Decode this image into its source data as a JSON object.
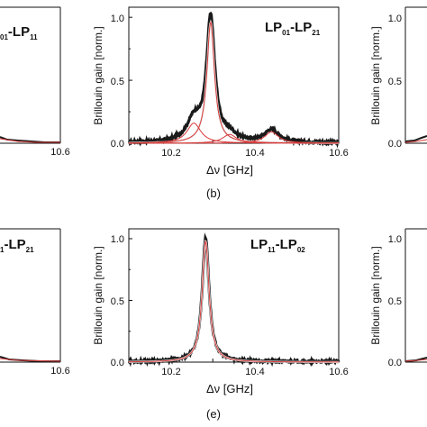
{
  "chart_data": [
    {
      "type": "line",
      "panel": "a",
      "title_main": [
        "01",
        "-LP",
        "11"
      ],
      "ylabel": "",
      "xlabel": "",
      "x_ticks": [
        "10.6"
      ],
      "y_ticks": [],
      "xlim": [
        10.1,
        10.6
      ],
      "ylim": [
        0,
        1.08
      ]
    },
    {
      "type": "line",
      "panel": "b",
      "panel_label": "(b)",
      "title_parts": [
        "LP",
        "01",
        "-LP",
        "21"
      ],
      "xlabel": "Δν [GHz]",
      "ylabel": "Brillouin gain [norm.]",
      "xlim": [
        10.1,
        10.6
      ],
      "ylim": [
        0,
        1.08
      ],
      "x_ticks": [
        "10.2",
        "10.4",
        "10.6"
      ],
      "y_ticks": [
        "0.0",
        "0.5",
        "1.0"
      ],
      "series": [
        {
          "style": "measured",
          "peaks": [
            [
              10.295,
              0.98,
              0.012
            ],
            [
              10.255,
              0.17,
              0.02
            ],
            [
              10.44,
              0.1,
              0.02
            ],
            [
              10.34,
              0.05,
              0.02
            ]
          ]
        },
        {
          "style": "fit",
          "peaks": [
            [
              10.295,
              0.96,
              0.011
            ]
          ]
        },
        {
          "style": "fit",
          "peaks": [
            [
              10.255,
              0.16,
              0.02
            ]
          ]
        },
        {
          "style": "fit",
          "peaks": [
            [
              10.34,
              0.07,
              0.02
            ]
          ]
        },
        {
          "style": "fit",
          "peaks": [
            [
              10.44,
              0.09,
              0.02
            ]
          ]
        }
      ]
    },
    {
      "type": "line",
      "panel": "c",
      "ylabel": "Brillouin gain [norm.]",
      "y_ticks": [
        "0.0",
        "0.5",
        "1.0"
      ],
      "xlim": [
        10.1,
        10.6
      ],
      "ylim": [
        0,
        1.08
      ]
    },
    {
      "type": "line",
      "panel": "d",
      "title_main": [
        "1",
        "-LP",
        "21"
      ],
      "x_ticks": [
        "10.6"
      ],
      "xlim": [
        10.1,
        10.6
      ],
      "ylim": [
        0,
        1.08
      ]
    },
    {
      "type": "line",
      "panel": "e",
      "panel_label": "(e)",
      "title_parts": [
        "LP",
        "11",
        "-LP",
        "02"
      ],
      "xlabel": "Δν [GHz]",
      "ylabel": "Brillouin gain [norm.]",
      "xlim": [
        10.1,
        10.6
      ],
      "ylim": [
        0,
        1.08
      ],
      "x_ticks": [
        "10.2",
        "10.4",
        "10.6"
      ],
      "y_ticks": [
        "0.0",
        "0.5",
        "1.0"
      ],
      "series": [
        {
          "style": "measured",
          "peaks": [
            [
              10.283,
              1.0,
              0.01
            ]
          ]
        },
        {
          "style": "fit",
          "peaks": [
            [
              10.283,
              0.98,
              0.01
            ]
          ]
        }
      ]
    },
    {
      "type": "line",
      "panel": "f",
      "ylabel": "Brillouin gain [norm.]",
      "y_ticks": [
        "0.0",
        "0.5",
        "1.0"
      ],
      "xlim": [
        10.1,
        10.6
      ],
      "ylim": [
        0,
        1.08
      ]
    }
  ],
  "colors": {
    "measured": "#1a1a1a",
    "fit_light": "#e8e8e8",
    "fit_red": "#d83a3a",
    "axis": "#111111"
  }
}
